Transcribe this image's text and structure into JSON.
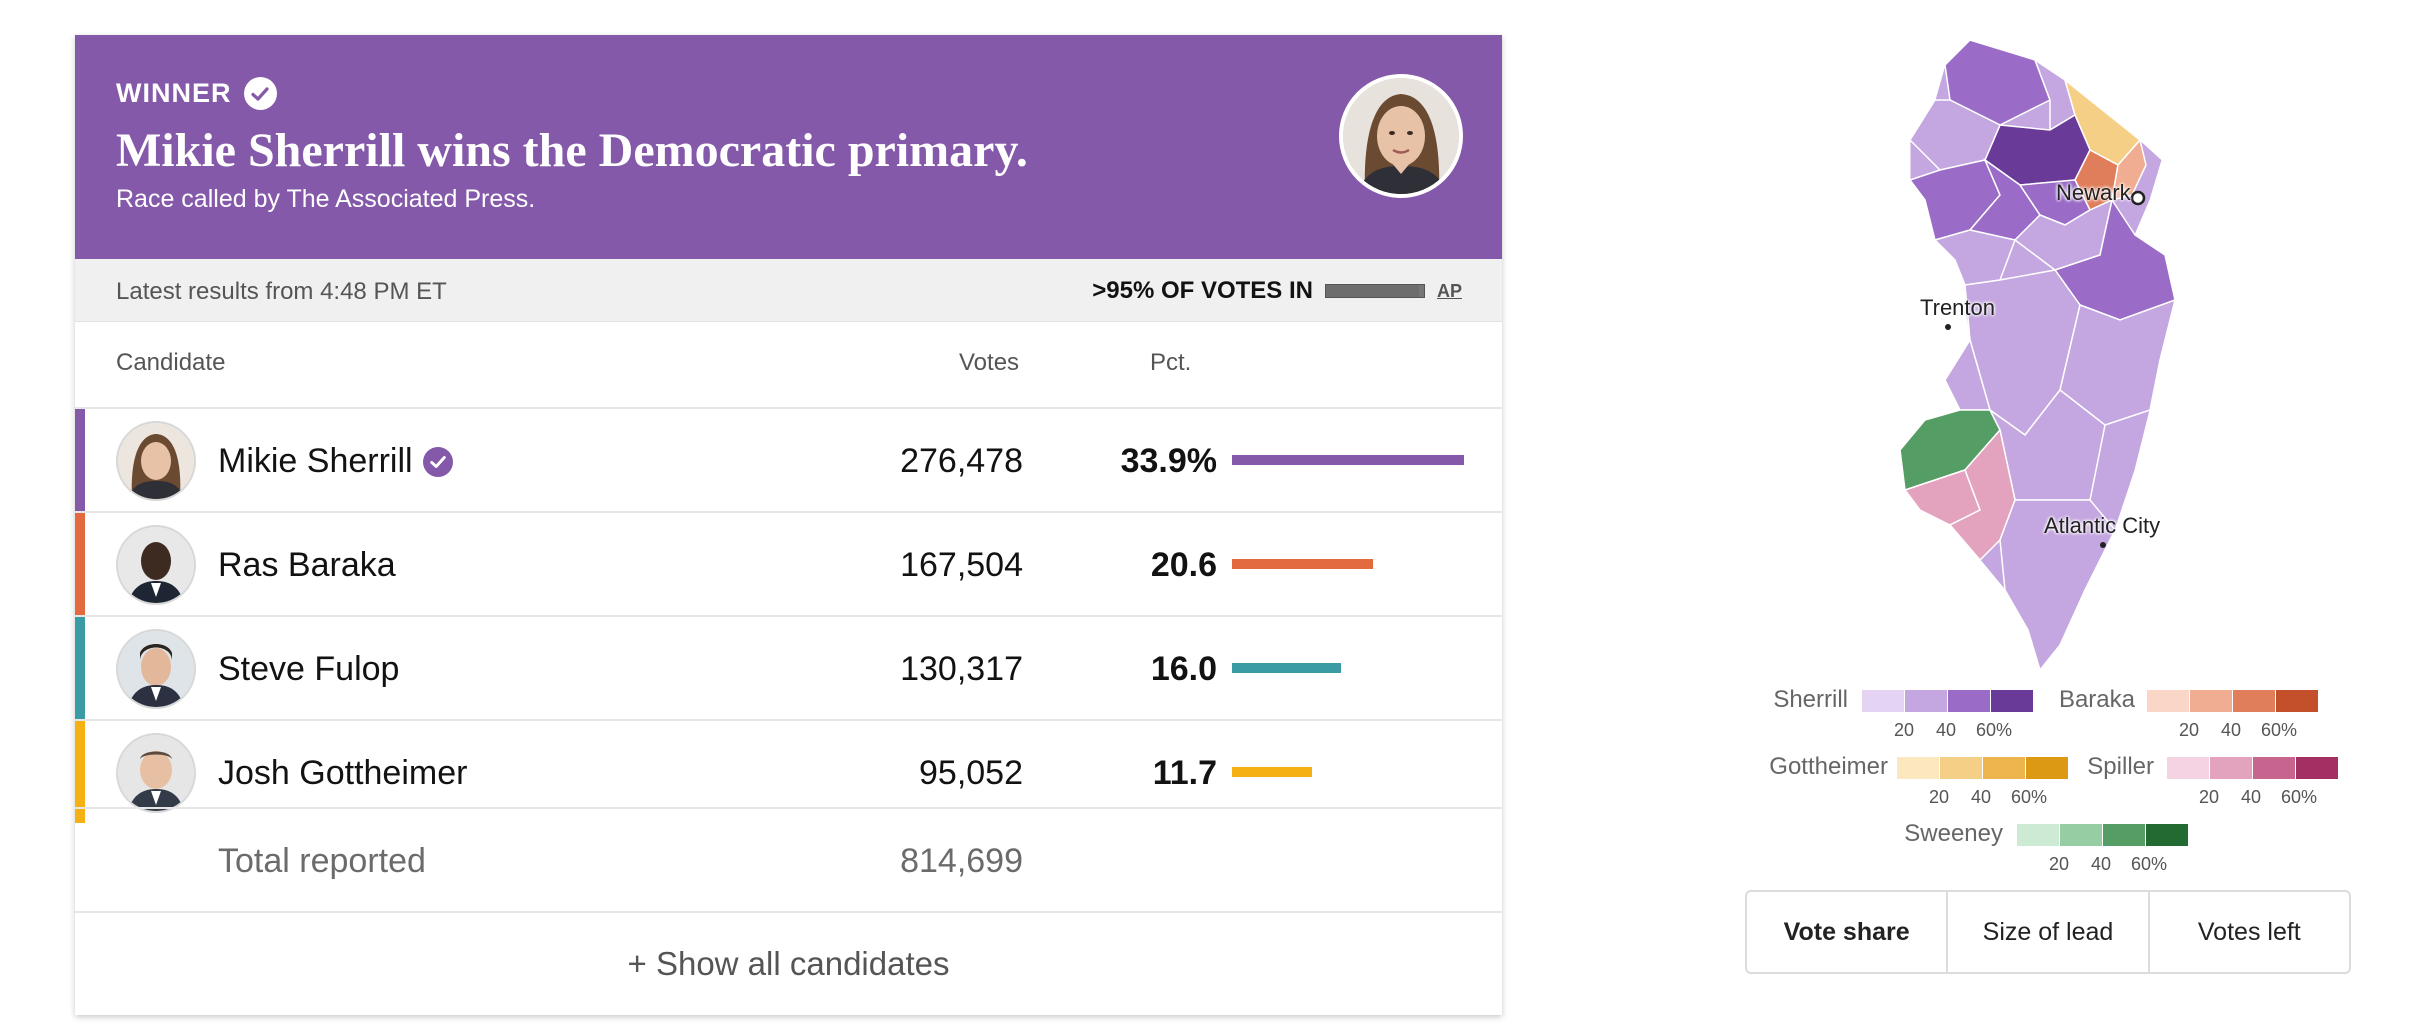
{
  "banner": {
    "winner_label": "WINNER",
    "headline": "Mikie Sherrill wins the Democratic primary.",
    "subhead": "Race called by The Associated Press.",
    "color": "#8459a9"
  },
  "status": {
    "latest": "Latest results from 4:48 PM ET",
    "reporting": ">95% OF VOTES IN",
    "reporting_fraction": 0.95,
    "source": "AP"
  },
  "table": {
    "headers": {
      "candidate": "Candidate",
      "votes": "Votes",
      "pct": "Pct."
    },
    "rows": [
      {
        "name": "Mikie Sherrill",
        "votes": "276,478",
        "pct": "33.9%",
        "pct_value": 33.9,
        "color": "#8459a9",
        "winner": true
      },
      {
        "name": "Ras Baraka",
        "votes": "167,504",
        "pct": "20.6",
        "pct_value": 20.6,
        "color": "#e36a3f",
        "winner": false
      },
      {
        "name": "Steve Fulop",
        "votes": "130,317",
        "pct": "16.0",
        "pct_value": 16.0,
        "color": "#3a9ba4",
        "winner": false
      },
      {
        "name": "Josh Gottheimer",
        "votes": "95,052",
        "pct": "11.7",
        "pct_value": 11.7,
        "color": "#f5b013",
        "winner": false
      }
    ],
    "total_label": "Total reported",
    "total_value": "814,699",
    "show_all": "+ Show all candidates"
  },
  "map": {
    "labels": {
      "newark": "Newark",
      "trenton": "Trenton",
      "atlantic_city": "Atlantic City"
    }
  },
  "legend": {
    "ticks": [
      "20",
      "40",
      "60%"
    ],
    "items": [
      {
        "name": "Sherrill",
        "colors": [
          "#e4d3f2",
          "#c4a6e0",
          "#9a6cc7",
          "#6a3a98"
        ]
      },
      {
        "name": "Baraka",
        "colors": [
          "#f9d6c8",
          "#f0ad92",
          "#e07e5b",
          "#c4502b"
        ]
      },
      {
        "name": "Gottheimer",
        "colors": [
          "#fbe8bf",
          "#f6cf86",
          "#eeb54f",
          "#dc9a14"
        ]
      },
      {
        "name": "Spiller",
        "colors": [
          "#f6d3e2",
          "#e3a3be",
          "#c8658f",
          "#a42f63"
        ]
      },
      {
        "name": "Sweeney",
        "colors": [
          "#cdebd4",
          "#96cda2",
          "#549d64",
          "#216b33"
        ]
      }
    ]
  },
  "view_toggle": {
    "options": [
      "Vote share",
      "Size of lead",
      "Votes left"
    ],
    "selected": "Vote share"
  }
}
